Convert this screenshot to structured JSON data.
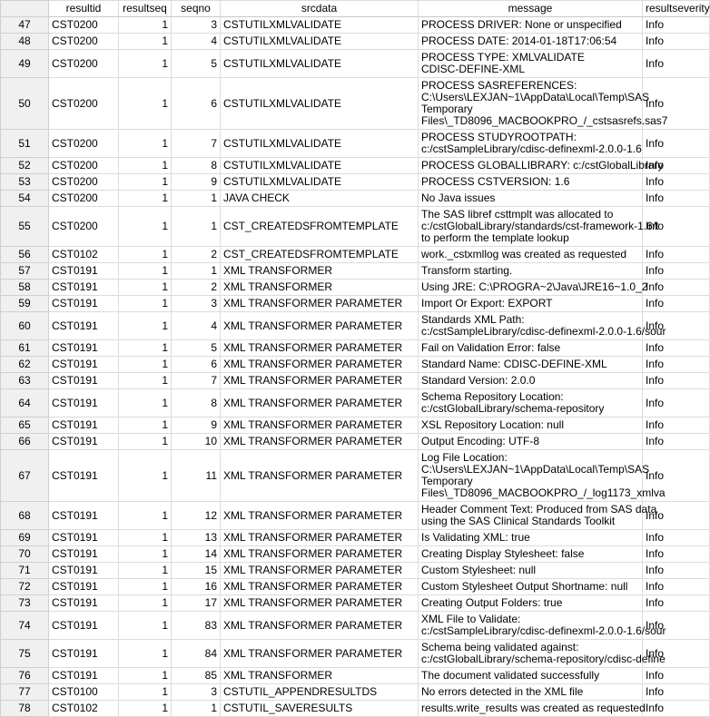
{
  "columns": [
    "",
    "resultid",
    "resultseq",
    "seqno",
    "srcdata",
    "message",
    "resultseverity"
  ],
  "rows": [
    {
      "n": "47",
      "resultid": "CST0200",
      "resultseq": "1",
      "seqno": "3",
      "srcdata": "CSTUTILXMLVALIDATE",
      "message": "PROCESS DRIVER: None or unspecified",
      "resultseverity": "Info"
    },
    {
      "n": "48",
      "resultid": "CST0200",
      "resultseq": "1",
      "seqno": "4",
      "srcdata": "CSTUTILXMLVALIDATE",
      "message": "PROCESS DATE: 2014-01-18T17:06:54",
      "resultseverity": "Info"
    },
    {
      "n": "49",
      "resultid": "CST0200",
      "resultseq": "1",
      "seqno": "5",
      "srcdata": "CSTUTILXMLVALIDATE",
      "message": "PROCESS TYPE: XMLVALIDATE\nCDISC-DEFINE-XML",
      "resultseverity": "Info"
    },
    {
      "n": "50",
      "resultid": "CST0200",
      "resultseq": "1",
      "seqno": "6",
      "srcdata": "CSTUTILXMLVALIDATE",
      "message": "PROCESS SASREFERENCES:\nC:\\Users\\LEXJAN~1\\AppData\\Local\\Temp\\SAS\nTemporary\nFiles\\_TD8096_MACBOOKPRO_/_cstsasrefs.sas7",
      "resultseverity": "Info"
    },
    {
      "n": "51",
      "resultid": "CST0200",
      "resultseq": "1",
      "seqno": "7",
      "srcdata": "CSTUTILXMLVALIDATE",
      "message": "PROCESS STUDYROOTPATH:\nc:/cstSampleLibrary/cdisc-definexml-2.0.0-1.6",
      "resultseverity": "Info"
    },
    {
      "n": "52",
      "resultid": "CST0200",
      "resultseq": "1",
      "seqno": "8",
      "srcdata": "CSTUTILXMLVALIDATE",
      "message": "PROCESS GLOBALLIBRARY: c:/cstGlobalLibrary",
      "resultseverity": "Info"
    },
    {
      "n": "53",
      "resultid": "CST0200",
      "resultseq": "1",
      "seqno": "9",
      "srcdata": "CSTUTILXMLVALIDATE",
      "message": "PROCESS CSTVERSION: 1.6",
      "resultseverity": "Info"
    },
    {
      "n": "54",
      "resultid": "CST0200",
      "resultseq": "1",
      "seqno": "1",
      "srcdata": "JAVA CHECK",
      "message": "No Java issues",
      "resultseverity": "Info"
    },
    {
      "n": "55",
      "resultid": "CST0200",
      "resultseq": "1",
      "seqno": "1",
      "srcdata": "CST_CREATEDSFROMTEMPLATE",
      "message": "The SAS libref csttmplt was allocated to\nc:/cstGlobalLibrary/standards/cst-framework-1.6/t\nto perform the template lookup",
      "resultseverity": "Info"
    },
    {
      "n": "56",
      "resultid": "CST0102",
      "resultseq": "1",
      "seqno": "2",
      "srcdata": "CST_CREATEDSFROMTEMPLATE",
      "message": "work._cstxmllog was created as requested",
      "resultseverity": "Info"
    },
    {
      "n": "57",
      "resultid": "CST0191",
      "resultseq": "1",
      "seqno": "1",
      "srcdata": "XML TRANSFORMER",
      "message": "Transform starting.",
      "resultseverity": "Info"
    },
    {
      "n": "58",
      "resultid": "CST0191",
      "resultseq": "1",
      "seqno": "2",
      "srcdata": "XML TRANSFORMER",
      "message": "Using JRE: C:\\PROGRA~2\\Java\\JRE16~1.0_2",
      "resultseverity": "Info"
    },
    {
      "n": "59",
      "resultid": "CST0191",
      "resultseq": "1",
      "seqno": "3",
      "srcdata": "XML TRANSFORMER PARAMETER",
      "message": "Import Or Export: EXPORT",
      "resultseverity": "Info"
    },
    {
      "n": "60",
      "resultid": "CST0191",
      "resultseq": "1",
      "seqno": "4",
      "srcdata": "XML TRANSFORMER PARAMETER",
      "message": "Standards XML Path:\nc:/cstSampleLibrary/cdisc-definexml-2.0.0-1.6/sour",
      "resultseverity": "Info"
    },
    {
      "n": "61",
      "resultid": "CST0191",
      "resultseq": "1",
      "seqno": "5",
      "srcdata": "XML TRANSFORMER PARAMETER",
      "message": "Fail on Validation Error: false",
      "resultseverity": "Info"
    },
    {
      "n": "62",
      "resultid": "CST0191",
      "resultseq": "1",
      "seqno": "6",
      "srcdata": "XML TRANSFORMER PARAMETER",
      "message": "Standard Name: CDISC-DEFINE-XML",
      "resultseverity": "Info"
    },
    {
      "n": "63",
      "resultid": "CST0191",
      "resultseq": "1",
      "seqno": "7",
      "srcdata": "XML TRANSFORMER PARAMETER",
      "message": "Standard Version: 2.0.0",
      "resultseverity": "Info"
    },
    {
      "n": "64",
      "resultid": "CST0191",
      "resultseq": "1",
      "seqno": "8",
      "srcdata": "XML TRANSFORMER PARAMETER",
      "message": "Schema Repository Location:\nc:/cstGlobalLibrary/schema-repository",
      "resultseverity": "Info"
    },
    {
      "n": "65",
      "resultid": "CST0191",
      "resultseq": "1",
      "seqno": "9",
      "srcdata": "XML TRANSFORMER PARAMETER",
      "message": "XSL Repository Location: null",
      "resultseverity": "Info"
    },
    {
      "n": "66",
      "resultid": "CST0191",
      "resultseq": "1",
      "seqno": "10",
      "srcdata": "XML TRANSFORMER PARAMETER",
      "message": "Output Encoding: UTF-8",
      "resultseverity": "Info"
    },
    {
      "n": "67",
      "resultid": "CST0191",
      "resultseq": "1",
      "seqno": "11",
      "srcdata": "XML TRANSFORMER PARAMETER",
      "message": "Log File Location:\nC:\\Users\\LEXJAN~1\\AppData\\Local\\Temp\\SAS\nTemporary\nFiles\\_TD8096_MACBOOKPRO_/_log1173_xmlva",
      "resultseverity": "Info"
    },
    {
      "n": "68",
      "resultid": "CST0191",
      "resultseq": "1",
      "seqno": "12",
      "srcdata": "XML TRANSFORMER PARAMETER",
      "message": "Header Comment Text: Produced from SAS data\nusing the SAS Clinical Standards Toolkit",
      "resultseverity": "Info"
    },
    {
      "n": "69",
      "resultid": "CST0191",
      "resultseq": "1",
      "seqno": "13",
      "srcdata": "XML TRANSFORMER PARAMETER",
      "message": "Is Validating XML: true",
      "resultseverity": "Info"
    },
    {
      "n": "70",
      "resultid": "CST0191",
      "resultseq": "1",
      "seqno": "14",
      "srcdata": "XML TRANSFORMER PARAMETER",
      "message": "Creating Display Stylesheet: false",
      "resultseverity": "Info"
    },
    {
      "n": "71",
      "resultid": "CST0191",
      "resultseq": "1",
      "seqno": "15",
      "srcdata": "XML TRANSFORMER PARAMETER",
      "message": "Custom Stylesheet: null",
      "resultseverity": "Info"
    },
    {
      "n": "72",
      "resultid": "CST0191",
      "resultseq": "1",
      "seqno": "16",
      "srcdata": "XML TRANSFORMER PARAMETER",
      "message": "Custom Stylesheet Output Shortname: null",
      "resultseverity": "Info"
    },
    {
      "n": "73",
      "resultid": "CST0191",
      "resultseq": "1",
      "seqno": "17",
      "srcdata": "XML TRANSFORMER PARAMETER",
      "message": "Creating Output Folders: true",
      "resultseverity": "Info"
    },
    {
      "n": "74",
      "resultid": "CST0191",
      "resultseq": "1",
      "seqno": "83",
      "srcdata": "XML TRANSFORMER PARAMETER",
      "message": "XML File to Validate:\nc:/cstSampleLibrary/cdisc-definexml-2.0.0-1.6/sour",
      "resultseverity": "Info"
    },
    {
      "n": "75",
      "resultid": "CST0191",
      "resultseq": "1",
      "seqno": "84",
      "srcdata": "XML TRANSFORMER PARAMETER",
      "message": "Schema being validated against:\nc:/cstGlobalLibrary/schema-repository/cdisc-define",
      "resultseverity": "Info"
    },
    {
      "n": "76",
      "resultid": "CST0191",
      "resultseq": "1",
      "seqno": "85",
      "srcdata": "XML TRANSFORMER",
      "message": "The document validated successfully",
      "resultseverity": "Info"
    },
    {
      "n": "77",
      "resultid": "CST0100",
      "resultseq": "1",
      "seqno": "3",
      "srcdata": "CSTUTIL_APPENDRESULTDS",
      "message": "No errors detected in the XML file",
      "resultseverity": "Info"
    },
    {
      "n": "78",
      "resultid": "CST0102",
      "resultseq": "1",
      "seqno": "1",
      "srcdata": "CSTUTIL_SAVERESULTS",
      "message": "results.write_results was created as requested",
      "resultseverity": "Info"
    }
  ]
}
